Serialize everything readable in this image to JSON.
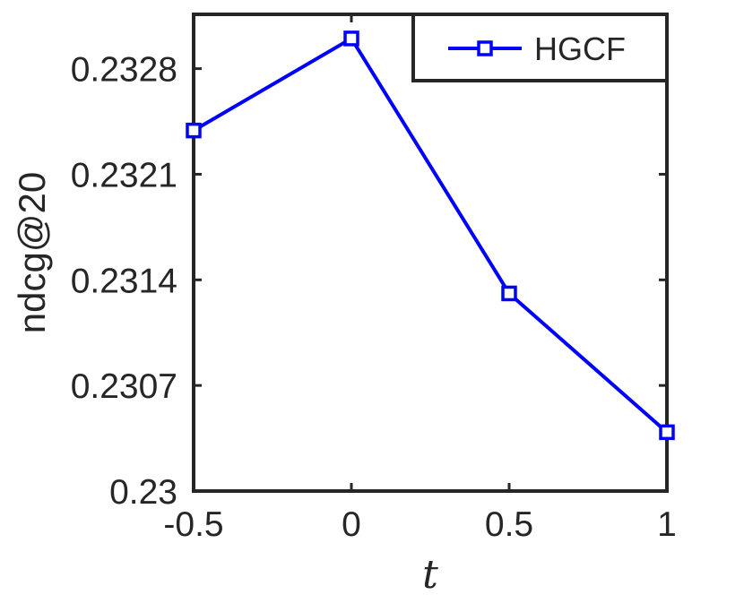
{
  "chart_data": {
    "type": "line",
    "title": "",
    "xlabel": "t",
    "ylabel": "ndcg@20",
    "x": [
      -0.5,
      0,
      0.5,
      1
    ],
    "x_ticks": [
      -0.5,
      0,
      0.5,
      1
    ],
    "x_tick_labels": [
      "-0.5",
      "0",
      "0.5",
      "1"
    ],
    "xlim": [
      -0.5,
      1
    ],
    "y_ticks": [
      0.23,
      0.2307,
      0.2314,
      0.2321,
      0.2328
    ],
    "y_tick_labels": [
      "0.23",
      "0.2307",
      "0.2314",
      "0.2321",
      "0.2328"
    ],
    "ylim": [
      0.23,
      0.23316
    ],
    "grid": false,
    "legend_position": "top-right",
    "series": [
      {
        "name": "HGCF",
        "color": "#0000ff",
        "marker": "square",
        "values": [
          0.23239,
          0.233,
          0.23131,
          0.23039
        ]
      }
    ]
  }
}
